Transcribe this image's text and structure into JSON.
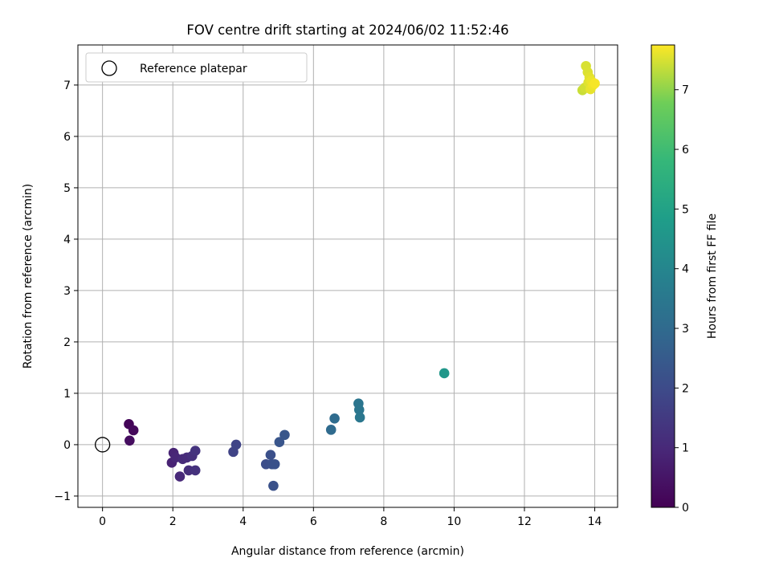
{
  "chart_data": {
    "type": "scatter",
    "title": "FOV centre drift starting at 2024/06/02 11:52:46",
    "xlabel": "Angular distance from reference (arcmin)",
    "ylabel": "Rotation from reference (arcmin)",
    "xlim": [
      -0.7,
      14.65
    ],
    "ylim": [
      -1.22,
      7.78
    ],
    "xticks": [
      0,
      2,
      4,
      6,
      8,
      10,
      12,
      14
    ],
    "yticks": [
      -1,
      0,
      1,
      2,
      3,
      4,
      5,
      6,
      7
    ],
    "grid": true,
    "legend": {
      "location": "top-left",
      "entries": [
        "Reference platepar"
      ]
    },
    "reference_point": {
      "name": "Reference platepar",
      "x": 0,
      "y": 0
    },
    "colorbar": {
      "label": "Hours from first FF file",
      "colormap": "viridis",
      "range": [
        0,
        7.75
      ],
      "ticks": [
        0,
        1,
        2,
        3,
        4,
        5,
        6,
        7
      ]
    },
    "points": [
      {
        "x": 0.75,
        "y": 0.4,
        "c": 0.1
      },
      {
        "x": 0.88,
        "y": 0.28,
        "c": 0.2
      },
      {
        "x": 0.77,
        "y": 0.08,
        "c": 0.3
      },
      {
        "x": 1.97,
        "y": -0.35,
        "c": 0.85
      },
      {
        "x": 2.02,
        "y": -0.16,
        "c": 0.9
      },
      {
        "x": 2.08,
        "y": -0.25,
        "c": 0.95
      },
      {
        "x": 2.2,
        "y": -0.62,
        "c": 1.0
      },
      {
        "x": 2.28,
        "y": -0.28,
        "c": 1.05
      },
      {
        "x": 2.4,
        "y": -0.25,
        "c": 1.1
      },
      {
        "x": 2.45,
        "y": -0.5,
        "c": 1.15
      },
      {
        "x": 2.55,
        "y": -0.22,
        "c": 1.2
      },
      {
        "x": 2.64,
        "y": -0.5,
        "c": 1.25
      },
      {
        "x": 2.64,
        "y": -0.12,
        "c": 1.3
      },
      {
        "x": 3.72,
        "y": -0.14,
        "c": 1.75
      },
      {
        "x": 3.8,
        "y": 0.0,
        "c": 1.8
      },
      {
        "x": 4.65,
        "y": -0.38,
        "c": 2.1
      },
      {
        "x": 4.78,
        "y": -0.2,
        "c": 2.15
      },
      {
        "x": 4.82,
        "y": -0.38,
        "c": 2.15
      },
      {
        "x": 4.86,
        "y": -0.8,
        "c": 2.2
      },
      {
        "x": 4.9,
        "y": -0.38,
        "c": 2.2
      },
      {
        "x": 5.03,
        "y": 0.05,
        "c": 2.3
      },
      {
        "x": 5.18,
        "y": 0.19,
        "c": 2.35
      },
      {
        "x": 6.5,
        "y": 0.29,
        "c": 3.0
      },
      {
        "x": 6.6,
        "y": 0.51,
        "c": 3.05
      },
      {
        "x": 7.28,
        "y": 0.8,
        "c": 3.4
      },
      {
        "x": 7.3,
        "y": 0.68,
        "c": 3.42
      },
      {
        "x": 7.32,
        "y": 0.53,
        "c": 3.45
      },
      {
        "x": 9.72,
        "y": 1.39,
        "c": 4.6
      },
      {
        "x": 13.65,
        "y": 6.9,
        "c": 7.4
      },
      {
        "x": 13.72,
        "y": 6.95,
        "c": 7.45
      },
      {
        "x": 13.75,
        "y": 7.37,
        "c": 7.5
      },
      {
        "x": 13.8,
        "y": 7.25,
        "c": 7.52
      },
      {
        "x": 13.82,
        "y": 7.05,
        "c": 7.55
      },
      {
        "x": 13.85,
        "y": 7.15,
        "c": 7.57
      },
      {
        "x": 13.88,
        "y": 6.92,
        "c": 7.6
      },
      {
        "x": 13.9,
        "y": 7.08,
        "c": 7.62
      },
      {
        "x": 13.95,
        "y": 7.0,
        "c": 7.65
      },
      {
        "x": 14.0,
        "y": 7.03,
        "c": 7.7
      }
    ]
  }
}
